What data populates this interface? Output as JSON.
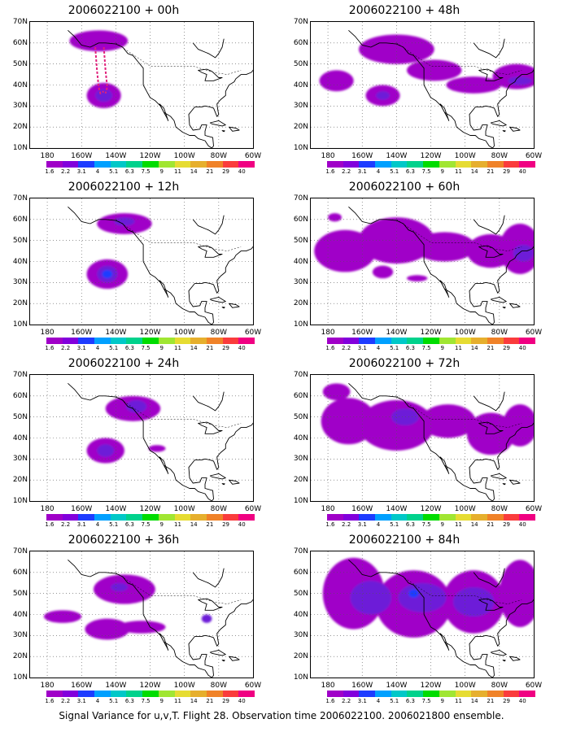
{
  "panels": [
    {
      "title": "2006022100 + 00h",
      "blobs": [
        {
          "lon": -150,
          "lat": 61,
          "rx": 17,
          "ry": 5,
          "lvl": 0
        },
        {
          "lon": -147,
          "lat": 35,
          "rx": 10,
          "ry": 6,
          "lvl": 0
        },
        {
          "lon": -147,
          "lat": 35,
          "rx": 5,
          "ry": 3,
          "lvl": 1
        }
      ],
      "dashed": true
    },
    {
      "title": "2006022100 + 12h",
      "blobs": [
        {
          "lon": -135,
          "lat": 58,
          "rx": 16,
          "ry": 5,
          "lvl": 0
        },
        {
          "lon": -135,
          "lat": 59,
          "rx": 6,
          "ry": 2,
          "lvl": 1
        },
        {
          "lon": -145,
          "lat": 34,
          "rx": 12,
          "ry": 7,
          "lvl": 0
        },
        {
          "lon": -145,
          "lat": 34,
          "rx": 6,
          "ry": 4,
          "lvl": 1
        },
        {
          "lon": -145,
          "lat": 34,
          "rx": 3,
          "ry": 2,
          "lvl": 2
        }
      ]
    },
    {
      "title": "2006022100 + 24h",
      "blobs": [
        {
          "lon": -130,
          "lat": 54,
          "rx": 16,
          "ry": 6,
          "lvl": 0
        },
        {
          "lon": -128,
          "lat": 55,
          "rx": 6,
          "ry": 3,
          "lvl": 1
        },
        {
          "lon": -146,
          "lat": 34,
          "rx": 11,
          "ry": 6,
          "lvl": 0
        },
        {
          "lon": -146,
          "lat": 34,
          "rx": 5,
          "ry": 3,
          "lvl": 1
        },
        {
          "lon": -116,
          "lat": 35,
          "rx": 5,
          "ry": 1.6,
          "lvl": 0
        }
      ]
    },
    {
      "title": "2006022100 + 36h",
      "blobs": [
        {
          "lon": -135,
          "lat": 52,
          "rx": 18,
          "ry": 7,
          "lvl": 0
        },
        {
          "lon": -138,
          "lat": 53,
          "rx": 5,
          "ry": 2,
          "lvl": 1
        },
        {
          "lon": -171,
          "lat": 39,
          "rx": 11,
          "ry": 3,
          "lvl": 0
        },
        {
          "lon": -145,
          "lat": 33,
          "rx": 13,
          "ry": 5,
          "lvl": 0
        },
        {
          "lon": -125,
          "lat": 34,
          "rx": 14,
          "ry": 3,
          "lvl": 0
        },
        {
          "lon": -87,
          "lat": 38,
          "rx": 3,
          "ry": 2,
          "lvl": 1
        }
      ]
    },
    {
      "title": "2006022100 + 48h",
      "blobs": [
        {
          "lon": -140,
          "lat": 57,
          "rx": 22,
          "ry": 7,
          "lvl": 0
        },
        {
          "lon": -118,
          "lat": 47,
          "rx": 16,
          "ry": 5,
          "lvl": 0
        },
        {
          "lon": -175,
          "lat": 42,
          "rx": 10,
          "ry": 5,
          "lvl": 0
        },
        {
          "lon": -148,
          "lat": 35,
          "rx": 10,
          "ry": 5,
          "lvl": 0
        },
        {
          "lon": -148,
          "lat": 35,
          "rx": 4,
          "ry": 2,
          "lvl": 1
        },
        {
          "lon": -95,
          "lat": 40,
          "rx": 16,
          "ry": 4,
          "lvl": 0
        },
        {
          "lon": -70,
          "lat": 44,
          "rx": 14,
          "ry": 6,
          "lvl": 0
        },
        {
          "lon": -68,
          "lat": 42,
          "rx": 7,
          "ry": 2,
          "lvl": 1
        }
      ]
    },
    {
      "title": "2006022100 + 60h",
      "blobs": [
        {
          "lon": -170,
          "lat": 45,
          "rx": 18,
          "ry": 10,
          "lvl": 0
        },
        {
          "lon": -140,
          "lat": 50,
          "rx": 22,
          "ry": 11,
          "lvl": 0
        },
        {
          "lon": -112,
          "lat": 47,
          "rx": 18,
          "ry": 7,
          "lvl": 0
        },
        {
          "lon": -85,
          "lat": 45,
          "rx": 14,
          "ry": 8,
          "lvl": 0
        },
        {
          "lon": -68,
          "lat": 46,
          "rx": 12,
          "ry": 12,
          "lvl": 0
        },
        {
          "lon": -66,
          "lat": 44,
          "rx": 6,
          "ry": 4,
          "lvl": 1
        },
        {
          "lon": -176,
          "lat": 61,
          "rx": 4,
          "ry": 2,
          "lvl": 0
        },
        {
          "lon": -148,
          "lat": 35,
          "rx": 6,
          "ry": 3,
          "lvl": 0
        },
        {
          "lon": -128,
          "lat": 32,
          "rx": 6,
          "ry": 1.5,
          "lvl": 0
        }
      ]
    },
    {
      "title": "2006022100 + 72h",
      "blobs": [
        {
          "lon": -168,
          "lat": 48,
          "rx": 16,
          "ry": 11,
          "lvl": 0
        },
        {
          "lon": -140,
          "lat": 46,
          "rx": 22,
          "ry": 12,
          "lvl": 0
        },
        {
          "lon": -135,
          "lat": 50,
          "rx": 8,
          "ry": 4,
          "lvl": 1
        },
        {
          "lon": -110,
          "lat": 48,
          "rx": 16,
          "ry": 8,
          "lvl": 0
        },
        {
          "lon": -85,
          "lat": 42,
          "rx": 14,
          "ry": 10,
          "lvl": 0
        },
        {
          "lon": -68,
          "lat": 46,
          "rx": 10,
          "ry": 10,
          "lvl": 0
        },
        {
          "lon": -175,
          "lat": 62,
          "rx": 8,
          "ry": 4,
          "lvl": 0
        }
      ]
    },
    {
      "title": "2006022100 + 84h",
      "blobs": [
        {
          "lon": -165,
          "lat": 50,
          "rx": 18,
          "ry": 17,
          "lvl": 0
        },
        {
          "lon": -130,
          "lat": 45,
          "rx": 22,
          "ry": 16,
          "lvl": 0
        },
        {
          "lon": -95,
          "lat": 46,
          "rx": 18,
          "ry": 15,
          "lvl": 0
        },
        {
          "lon": -68,
          "lat": 50,
          "rx": 12,
          "ry": 16,
          "lvl": 0
        },
        {
          "lon": -155,
          "lat": 48,
          "rx": 12,
          "ry": 8,
          "lvl": 1
        },
        {
          "lon": -125,
          "lat": 48,
          "rx": 14,
          "ry": 7,
          "lvl": 1
        },
        {
          "lon": -95,
          "lat": 46,
          "rx": 12,
          "ry": 7,
          "lvl": 1
        },
        {
          "lon": -130,
          "lat": 50,
          "rx": 3,
          "ry": 2,
          "lvl": 2
        }
      ]
    }
  ],
  "axes": {
    "ylabels": [
      "70N",
      "60N",
      "50N",
      "40N",
      "30N",
      "20N",
      "10N"
    ],
    "xlabels": [
      "180",
      "160W",
      "140W",
      "120W",
      "100W",
      "80W",
      "60W"
    ],
    "lon_range": [
      -190,
      -60
    ],
    "lat_range": [
      10,
      70
    ]
  },
  "colorbar": {
    "labels": [
      "1.6",
      "2.2",
      "3.1",
      "4",
      "5.1",
      "6.3",
      "7.5",
      "9",
      "11",
      "14",
      "21",
      "29",
      "40"
    ],
    "colors": [
      "#a000c8",
      "#8200dc",
      "#1e3cff",
      "#00a0ff",
      "#00c8c8",
      "#00d28c",
      "#00dc00",
      "#a0e632",
      "#e6dc32",
      "#e6af2d",
      "#f08228",
      "#fa3c3c",
      "#f00082"
    ]
  },
  "fill_colors": [
    "#a000c8",
    "#6d1fd8",
    "#1e3cff"
  ],
  "caption": "Signal Variance for u,v,T. Flight 28. Observation time 2006022100. 2006021800 ensemble."
}
